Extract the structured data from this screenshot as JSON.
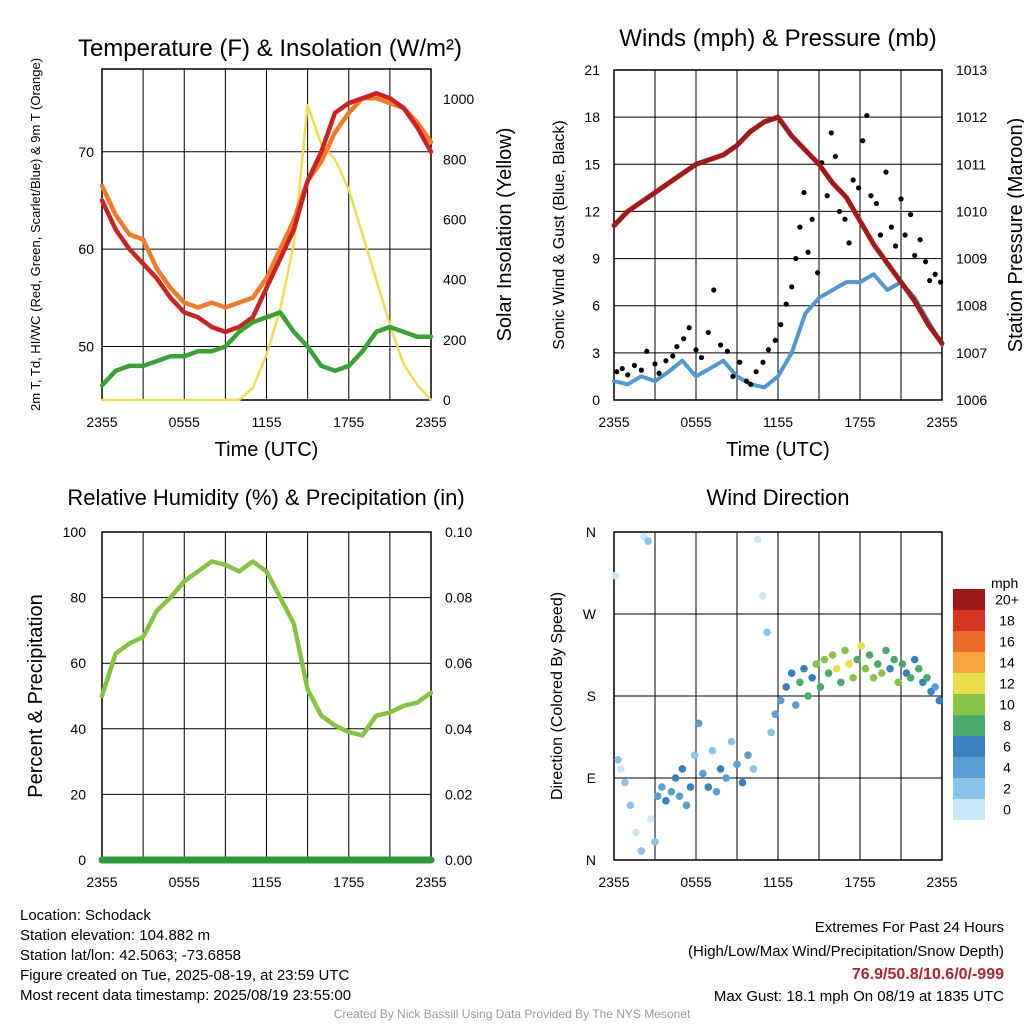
{
  "chart_data": [
    {
      "type": "line",
      "title": "Temperature (F) & Insolation (W/m²)",
      "xlabel": "Time (UTC)",
      "ylabel_left": "2m T, Td, HI/WC (Red, Green, Scarlet/Blue) & 9m T (Orange)",
      "ylabel_right": "Solar Insolation (Yellow)",
      "x_tick_labels": [
        "2355",
        "0555",
        "1155",
        "1755",
        "2355"
      ],
      "ylim_left": [
        44.5,
        78.5
      ],
      "ylim_right": [
        0,
        1100
      ],
      "yticks_left": [
        50,
        60,
        70
      ],
      "yticks_right": [
        0,
        200,
        400,
        600,
        800,
        1000
      ],
      "x_hours": [
        0,
        1,
        2,
        3,
        4,
        5,
        6,
        7,
        8,
        9,
        10,
        11,
        12,
        13,
        14,
        15,
        16,
        17,
        18,
        19,
        20,
        21,
        22,
        23,
        24
      ],
      "series": [
        {
          "key": "t9m",
          "color": "#f07b28",
          "axis": "left",
          "values": [
            66.5,
            63.5,
            61.5,
            61,
            58,
            56,
            54.5,
            54,
            54.5,
            54,
            54.5,
            55,
            57,
            60,
            63,
            67,
            69,
            72,
            74,
            75.5,
            75.5,
            75,
            74.5,
            73,
            71
          ]
        },
        {
          "key": "t2m",
          "color": "#cc2222",
          "axis": "left",
          "values": [
            65,
            62,
            60,
            58.5,
            57,
            55,
            53.5,
            53,
            52,
            51.5,
            52,
            53,
            56,
            59,
            62,
            67,
            70,
            74,
            75,
            75.5,
            76,
            75.5,
            74.5,
            72.5,
            70
          ]
        },
        {
          "key": "td",
          "color": "#3aa335",
          "axis": "left",
          "values": [
            46,
            47.5,
            48,
            48,
            48.5,
            49,
            49,
            49.5,
            49.5,
            50,
            51.5,
            52.5,
            53,
            53.5,
            51.5,
            50,
            48,
            47.5,
            48,
            49.5,
            51.5,
            52,
            51.5,
            51,
            51
          ]
        },
        {
          "key": "solar",
          "color": "#f0dc50",
          "axis": "right",
          "values": [
            0,
            0,
            0,
            0,
            0,
            0,
            0,
            0,
            0,
            0,
            0,
            40,
            150,
            300,
            520,
            980,
            850,
            800,
            700,
            550,
            400,
            250,
            120,
            50,
            0
          ]
        }
      ]
    },
    {
      "type": "line",
      "title": "Winds (mph) & Pressure (mb)",
      "xlabel": "Time (UTC)",
      "ylabel_left": "Sonic Wind & Gust (Blue, Black)",
      "ylabel_right": "Station Pressure (Maroon)",
      "x_tick_labels": [
        "2355",
        "0555",
        "1155",
        "1755",
        "2355"
      ],
      "ylim_left": [
        0,
        21
      ],
      "ylim_right": [
        1006,
        1013
      ],
      "yticks_left": [
        0,
        3,
        6,
        9,
        12,
        15,
        18,
        21
      ],
      "yticks_right": [
        1006,
        1007,
        1008,
        1009,
        1010,
        1011,
        1012,
        1013
      ],
      "x_hours": [
        0,
        1,
        2,
        3,
        4,
        5,
        6,
        7,
        8,
        9,
        10,
        11,
        12,
        13,
        14,
        15,
        16,
        17,
        18,
        19,
        20,
        21,
        22,
        23,
        24
      ],
      "series": [
        {
          "key": "pressure",
          "color": "#a31a1a",
          "axis": "right",
          "values": [
            1009.7,
            1010.0,
            1010.2,
            1010.4,
            1010.6,
            1010.8,
            1011.0,
            1011.1,
            1011.2,
            1011.4,
            1011.7,
            1011.9,
            1012.0,
            1011.6,
            1011.3,
            1011.0,
            1010.6,
            1010.3,
            1009.8,
            1009.3,
            1008.9,
            1008.5,
            1008.1,
            1007.6,
            1007.2
          ]
        },
        {
          "key": "wind",
          "color": "#4f98d2",
          "axis": "left",
          "values": [
            1.2,
            1.0,
            1.5,
            1.2,
            1.8,
            2.5,
            1.5,
            2.0,
            2.5,
            1.5,
            1.0,
            0.8,
            1.5,
            3.0,
            5.5,
            6.5,
            7.0,
            7.5,
            7.5,
            8.0,
            7.0,
            7.5,
            6.5,
            5.0,
            3.5
          ]
        }
      ],
      "gust_points": [
        [
          0.2,
          1.8
        ],
        [
          0.6,
          2.0
        ],
        [
          1.0,
          1.6
        ],
        [
          1.5,
          2.2
        ],
        [
          2.0,
          1.9
        ],
        [
          2.4,
          3.1
        ],
        [
          3.0,
          2.3
        ],
        [
          3.3,
          1.7
        ],
        [
          3.8,
          2.5
        ],
        [
          4.3,
          2.8
        ],
        [
          4.6,
          3.4
        ],
        [
          5.1,
          3.9
        ],
        [
          5.5,
          4.6
        ],
        [
          6.0,
          3.2
        ],
        [
          6.4,
          2.7
        ],
        [
          6.9,
          4.3
        ],
        [
          7.3,
          7.0
        ],
        [
          7.8,
          3.5
        ],
        [
          8.3,
          3.1
        ],
        [
          8.7,
          1.5
        ],
        [
          9.2,
          2.4
        ],
        [
          9.7,
          1.2
        ],
        [
          10.0,
          1.0
        ],
        [
          10.4,
          1.8
        ],
        [
          10.9,
          2.4
        ],
        [
          11.3,
          3.2
        ],
        [
          11.8,
          3.8
        ],
        [
          12.2,
          4.8
        ],
        [
          12.6,
          6.1
        ],
        [
          13.0,
          7.2
        ],
        [
          13.3,
          9.0
        ],
        [
          13.6,
          11.0
        ],
        [
          13.9,
          13.2
        ],
        [
          14.2,
          9.4
        ],
        [
          14.5,
          11.5
        ],
        [
          14.9,
          8.1
        ],
        [
          15.2,
          15.1
        ],
        [
          15.6,
          13.0
        ],
        [
          15.9,
          17.0
        ],
        [
          16.2,
          15.5
        ],
        [
          16.5,
          12.0
        ],
        [
          16.9,
          11.5
        ],
        [
          17.2,
          10.0
        ],
        [
          17.5,
          14.0
        ],
        [
          17.9,
          13.5
        ],
        [
          18.2,
          16.5
        ],
        [
          18.5,
          18.1
        ],
        [
          18.8,
          13.0
        ],
        [
          19.2,
          12.5
        ],
        [
          19.5,
          10.5
        ],
        [
          19.9,
          14.5
        ],
        [
          20.3,
          11.0
        ],
        [
          20.6,
          9.8
        ],
        [
          21.0,
          12.8
        ],
        [
          21.3,
          10.5
        ],
        [
          21.7,
          11.8
        ],
        [
          22.0,
          9.2
        ],
        [
          22.4,
          10.2
        ],
        [
          22.8,
          8.8
        ],
        [
          23.1,
          7.6
        ],
        [
          23.5,
          8.0
        ],
        [
          23.9,
          7.5
        ]
      ]
    },
    {
      "type": "line",
      "title": "Relative Humidity (%) & Precipitation (in)",
      "ylabel_left": "Percent & Precipitation",
      "x_tick_labels": [
        "2355",
        "0555",
        "1155",
        "1755",
        "2355"
      ],
      "ylim_left": [
        0,
        100
      ],
      "ylim_right": [
        0,
        0.1
      ],
      "yticks_left": [
        0,
        20,
        40,
        60,
        80,
        100
      ],
      "yticks_right": [
        "0.00",
        "0.02",
        "0.04",
        "0.06",
        "0.08",
        "0.10"
      ],
      "x_hours": [
        0,
        1,
        2,
        3,
        4,
        5,
        6,
        7,
        8,
        9,
        10,
        11,
        12,
        13,
        14,
        15,
        16,
        17,
        18,
        19,
        20,
        21,
        22,
        23,
        24
      ],
      "series": [
        {
          "key": "rh",
          "color": "#85c441",
          "axis": "left",
          "values": [
            50,
            63,
            66,
            68,
            76,
            80,
            85,
            88,
            91,
            90,
            88,
            91,
            88,
            80,
            72,
            52,
            44,
            41,
            39,
            38,
            44,
            45,
            47,
            48,
            51
          ]
        },
        {
          "key": "precip",
          "color": "#2d9a3a",
          "axis": "right",
          "values": [
            0,
            0,
            0,
            0,
            0,
            0,
            0,
            0,
            0,
            0,
            0,
            0,
            0,
            0,
            0,
            0,
            0,
            0,
            0,
            0,
            0,
            0,
            0,
            0,
            0
          ]
        }
      ]
    },
    {
      "type": "scatter",
      "title": "Wind Direction",
      "ylabel_left": "Direction (Colored By Speed)",
      "x_tick_labels": [
        "2355",
        "0555",
        "1155",
        "1755",
        "2355"
      ],
      "y_tick_labels": [
        "N",
        "E",
        "S",
        "W",
        "N"
      ],
      "ylim_left": [
        0,
        360
      ],
      "legend_title": "mph",
      "legend_labels": [
        "0",
        "2",
        "4",
        "6",
        "8",
        "10",
        "12",
        "14",
        "16",
        "18",
        "20+"
      ],
      "legend_colors": [
        "#c8e8f8",
        "#8ac4e8",
        "#5b9fd2",
        "#3a7fbe",
        "#4caa6a",
        "#86c445",
        "#e8df4a",
        "#f6a43e",
        "#ee6a2a",
        "#d63524",
        "#9c1a1a"
      ],
      "points": [
        [
          0.1,
          312,
          0
        ],
        [
          0.3,
          110,
          1
        ],
        [
          0.5,
          100,
          0
        ],
        [
          0.8,
          85,
          1
        ],
        [
          1.2,
          60,
          1
        ],
        [
          1.6,
          30,
          0
        ],
        [
          2.0,
          10,
          1
        ],
        [
          2.2,
          355,
          0
        ],
        [
          2.5,
          350,
          1
        ],
        [
          2.7,
          45,
          0
        ],
        [
          3.0,
          20,
          1
        ],
        [
          3.2,
          70,
          2
        ],
        [
          3.5,
          80,
          2
        ],
        [
          3.8,
          65,
          3
        ],
        [
          4.2,
          75,
          2
        ],
        [
          4.5,
          90,
          3
        ],
        [
          4.8,
          70,
          2
        ],
        [
          5.0,
          100,
          3
        ],
        [
          5.3,
          60,
          2
        ],
        [
          5.6,
          80,
          3
        ],
        [
          5.9,
          115,
          1
        ],
        [
          6.2,
          150,
          2
        ],
        [
          6.5,
          95,
          2
        ],
        [
          6.9,
          80,
          3
        ],
        [
          7.2,
          120,
          1
        ],
        [
          7.5,
          75,
          2
        ],
        [
          7.8,
          100,
          3
        ],
        [
          8.2,
          90,
          2
        ],
        [
          8.6,
          130,
          1
        ],
        [
          9.0,
          105,
          2
        ],
        [
          9.4,
          85,
          3
        ],
        [
          9.8,
          115,
          2
        ],
        [
          10.2,
          100,
          1
        ],
        [
          10.5,
          352,
          0
        ],
        [
          10.9,
          290,
          0
        ],
        [
          11.2,
          250,
          1
        ],
        [
          11.5,
          140,
          1
        ],
        [
          11.8,
          160,
          2
        ],
        [
          12.2,
          175,
          2
        ],
        [
          12.6,
          190,
          3
        ],
        [
          13.0,
          205,
          3
        ],
        [
          13.3,
          170,
          2
        ],
        [
          13.6,
          195,
          4
        ],
        [
          13.9,
          210,
          3
        ],
        [
          14.2,
          180,
          4
        ],
        [
          14.5,
          200,
          3
        ],
        [
          14.8,
          215,
          5
        ],
        [
          15.1,
          190,
          4
        ],
        [
          15.4,
          220,
          5
        ],
        [
          15.7,
          205,
          4
        ],
        [
          16.0,
          225,
          5
        ],
        [
          16.3,
          210,
          6
        ],
        [
          16.6,
          195,
          4
        ],
        [
          16.9,
          230,
          5
        ],
        [
          17.2,
          215,
          6
        ],
        [
          17.5,
          200,
          5
        ],
        [
          17.8,
          220,
          4
        ],
        [
          18.1,
          235,
          6
        ],
        [
          18.4,
          210,
          5
        ],
        [
          18.7,
          225,
          4
        ],
        [
          19.0,
          200,
          5
        ],
        [
          19.3,
          215,
          4
        ],
        [
          19.6,
          205,
          5
        ],
        [
          19.9,
          230,
          4
        ],
        [
          20.2,
          210,
          3
        ],
        [
          20.5,
          220,
          4
        ],
        [
          20.8,
          195,
          5
        ],
        [
          21.1,
          215,
          4
        ],
        [
          21.4,
          205,
          3
        ],
        [
          21.7,
          200,
          4
        ],
        [
          22.0,
          220,
          3
        ],
        [
          22.3,
          210,
          4
        ],
        [
          22.6,
          195,
          3
        ],
        [
          22.9,
          200,
          4
        ],
        [
          23.2,
          185,
          3
        ],
        [
          23.5,
          190,
          2
        ],
        [
          23.8,
          175,
          3
        ]
      ]
    }
  ],
  "footer": {
    "location": "Location: Schodack",
    "elevation": "Station elevation: 104.882 m",
    "latlon": "Station lat/lon: 42.5063; -73.6858",
    "created": "Figure created on Tue, 2025-08-19, at 23:59 UTC",
    "recent": "Most recent data timestamp: 2025/08/19 23:55:00",
    "extremes_title": "Extremes For Past 24 Hours",
    "extremes_legend": "(High/Low/Max Wind/Precipitation/Snow Depth)",
    "extremes_values": "76.9/50.8/10.6/0/-999",
    "max_gust": "Max Gust: 18.1 mph On 08/19 at 1835 UTC",
    "credit": "Created By Nick Bassill Using Data Provided By The NYS Mesonet"
  }
}
